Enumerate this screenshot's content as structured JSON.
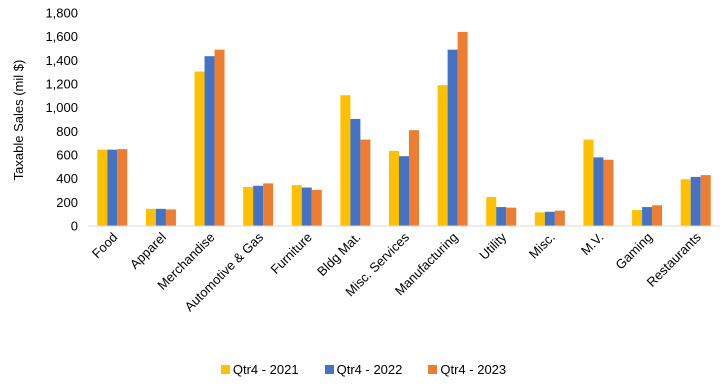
{
  "chart_data": {
    "type": "bar",
    "ylabel": "Taxable Sales (mil $)",
    "ylim": [
      0,
      1800
    ],
    "yticks": [
      "0",
      "200",
      "400",
      "600",
      "800",
      "1,000",
      "1,200",
      "1,400",
      "1,600",
      "1,800"
    ],
    "grid": false,
    "legend_position": "bottom",
    "categories": [
      "Food",
      "Apparel",
      "Merchandise",
      "Automotive & Gas",
      "Furniture",
      "Bldg Mat.",
      "Misc. Services",
      "Manufacturing",
      "Utility",
      "Misc.",
      "M.V.",
      "Gaming",
      "Restaurants"
    ],
    "series": [
      {
        "name": "Qtr4 - 2021",
        "color": "#FFC000",
        "values": [
          645,
          145,
          1305,
          330,
          345,
          1105,
          635,
          1190,
          245,
          115,
          730,
          135,
          395
        ]
      },
      {
        "name": "Qtr4 - 2022",
        "color": "#4472C4",
        "values": [
          645,
          145,
          1435,
          340,
          325,
          905,
          590,
          1490,
          160,
          120,
          580,
          160,
          415
        ]
      },
      {
        "name": "Qtr4 - 2023",
        "color": "#ED7D31",
        "values": [
          650,
          140,
          1490,
          360,
          305,
          730,
          810,
          1640,
          155,
          130,
          560,
          175,
          430
        ]
      }
    ]
  }
}
